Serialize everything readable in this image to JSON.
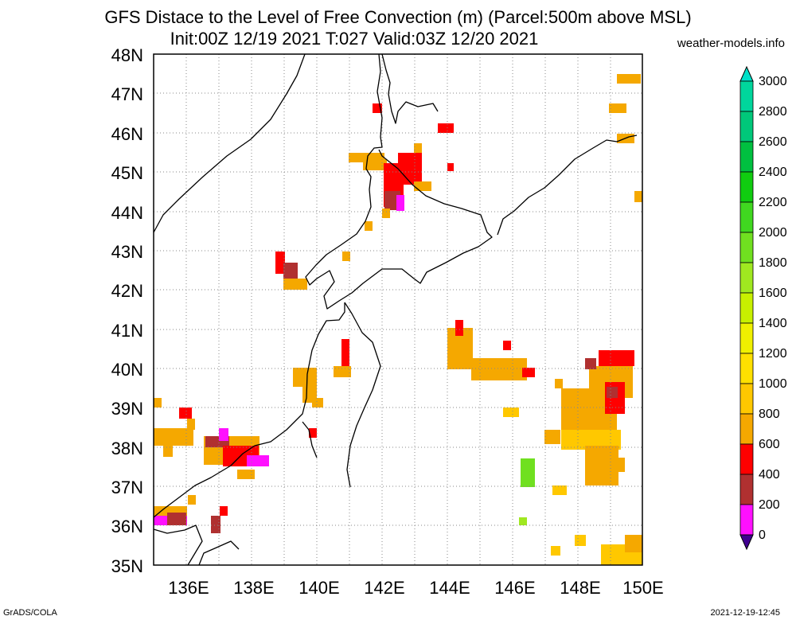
{
  "header": {
    "title_line1": "GFS Distace to the Level of Free Convection (m) (Parcel:500m above MSL)",
    "title_line2": "Init:00Z 12/19 2021 T:027 Valid:03Z 12/20 2021",
    "credit": "weather-models.info"
  },
  "footer": {
    "left": "GrADS/COLA",
    "right": "2021-12-19-12:45"
  },
  "map": {
    "lat_labels": [
      "48N",
      "47N",
      "46N",
      "45N",
      "44N",
      "43N",
      "42N",
      "41N",
      "40N",
      "39N",
      "38N",
      "37N",
      "36N",
      "35N"
    ],
    "lon_labels": [
      "136E",
      "138E",
      "140E",
      "142E",
      "144E",
      "146E",
      "148E",
      "150E"
    ]
  },
  "colorbar": {
    "labels": [
      "3000",
      "2800",
      "2600",
      "2400",
      "2200",
      "2000",
      "1800",
      "1600",
      "1400",
      "1200",
      "1000",
      "800",
      "600",
      "400",
      "200",
      "0"
    ],
    "colors": [
      "#00e0c8",
      "#00d69c",
      "#00c87a",
      "#00c040",
      "#10cc10",
      "#40d820",
      "#70e020",
      "#a0e820",
      "#c8f000",
      "#f0f000",
      "#ffe000",
      "#ffc800",
      "#f5a800",
      "#ff0000",
      "#b03030",
      "#ff10ff",
      "#400090"
    ]
  }
}
